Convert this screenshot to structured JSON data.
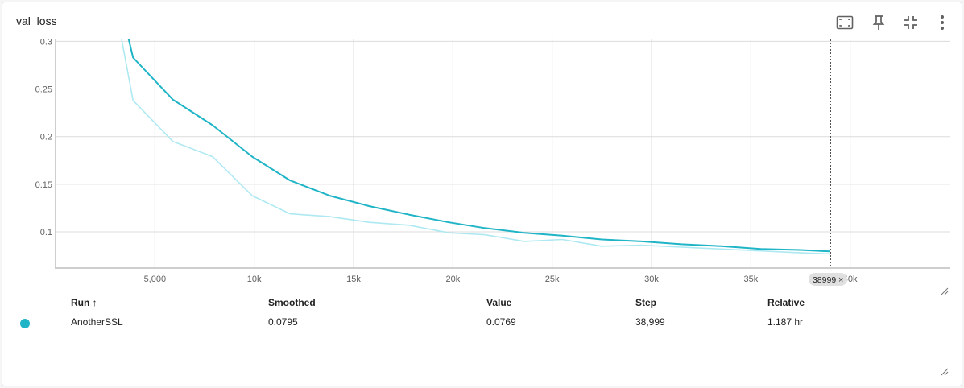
{
  "card": {
    "title": "val_loss"
  },
  "toolbar": {
    "icons": [
      "fit-domain-icon",
      "pin-icon",
      "fullscreen-exit-icon",
      "more-vert-icon"
    ]
  },
  "colors": {
    "smoothed": "#1fb4c6",
    "raw": "#aee9f2",
    "grid": "#dcdcdc",
    "axis": "#9e9e9e",
    "dot": "#1fb4c6"
  },
  "chart_data": {
    "type": "line",
    "title": "",
    "xlabel": "",
    "ylabel": "",
    "xlim": [
      0,
      45000
    ],
    "ylim": [
      0.062,
      0.302
    ],
    "x_ticks": [
      5000,
      10000,
      15000,
      20000,
      25000,
      30000,
      35000,
      40000
    ],
    "x_tick_labels": [
      "5,000",
      "10k",
      "15k",
      "20k",
      "25k",
      "30k",
      "35k",
      "40k"
    ],
    "y_ticks": [
      0.1,
      0.15,
      0.2,
      0.25,
      0.3
    ],
    "y_tick_labels": [
      "0.1",
      "0.15",
      "0.2",
      "0.25",
      "0.3"
    ],
    "grid": true,
    "series": [
      {
        "name": "AnotherSSL",
        "role": "raw",
        "x": [
          2000,
          3900,
          5900,
          7900,
          9900,
          11800,
          13800,
          15800,
          17800,
          19800,
          21600,
          23600,
          25500,
          27500,
          29500,
          31500,
          33500,
          35500,
          37500,
          38999
        ],
        "y": [
          0.45,
          0.238,
          0.195,
          0.179,
          0.138,
          0.119,
          0.116,
          0.11,
          0.107,
          0.099,
          0.097,
          0.09,
          0.092,
          0.085,
          0.086,
          0.084,
          0.082,
          0.08,
          0.078,
          0.0769
        ]
      },
      {
        "name": "AnotherSSL",
        "role": "smoothed",
        "x": [
          2000,
          3900,
          5900,
          7900,
          9900,
          11800,
          13800,
          15800,
          17800,
          19800,
          21600,
          23600,
          25500,
          27500,
          29500,
          31500,
          33500,
          35500,
          37500,
          38999
        ],
        "y": [
          0.45,
          0.283,
          0.239,
          0.212,
          0.179,
          0.154,
          0.138,
          0.127,
          0.118,
          0.11,
          0.104,
          0.099,
          0.096,
          0.092,
          0.09,
          0.087,
          0.085,
          0.082,
          0.081,
          0.0795
        ]
      }
    ],
    "cursor_step": 38999,
    "cursor_label": "38999",
    "cursor_close": "×"
  },
  "table": {
    "headers": {
      "run": "Run ↑",
      "smoothed": "Smoothed",
      "value": "Value",
      "step": "Step",
      "relative": "Relative"
    },
    "rows": [
      {
        "run": "AnotherSSL",
        "smoothed": "0.0795",
        "value": "0.0769",
        "step": "38,999",
        "relative": "1.187 hr"
      }
    ]
  }
}
